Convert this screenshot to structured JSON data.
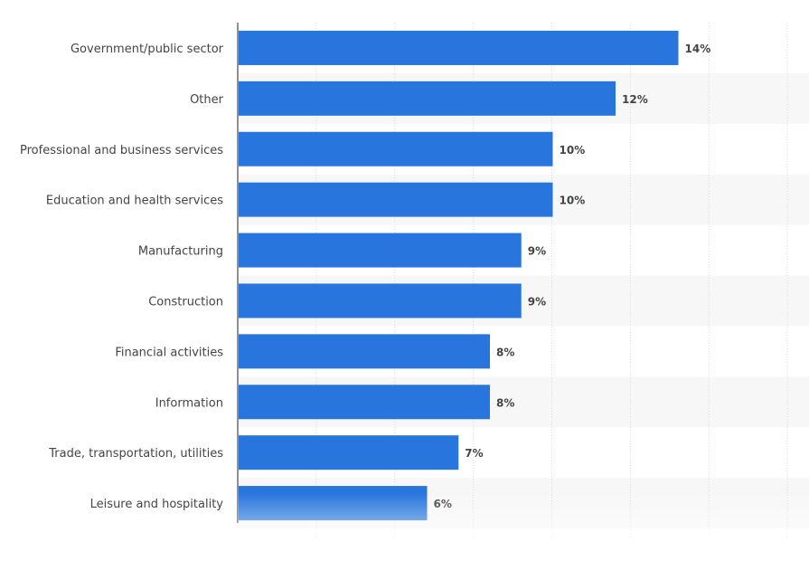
{
  "chart_data": {
    "type": "bar",
    "orientation": "horizontal",
    "categories": [
      "Government/public sector",
      "Other",
      "Professional and business services",
      "Education and health services",
      "Manufacturing",
      "Construction",
      "Financial activities",
      "Information",
      "Trade, transportation, utilities",
      "Leisure and hospitality"
    ],
    "values": [
      14,
      12,
      10,
      10,
      9,
      9,
      8,
      8,
      7,
      6
    ],
    "data_labels": [
      "14%",
      "12%",
      "10%",
      "10%",
      "9%",
      "9%",
      "8%",
      "8%",
      "7%",
      "6%"
    ],
    "title": "",
    "xlabel": "",
    "ylabel": "",
    "grid": true,
    "bar_color": "#2876dd"
  }
}
